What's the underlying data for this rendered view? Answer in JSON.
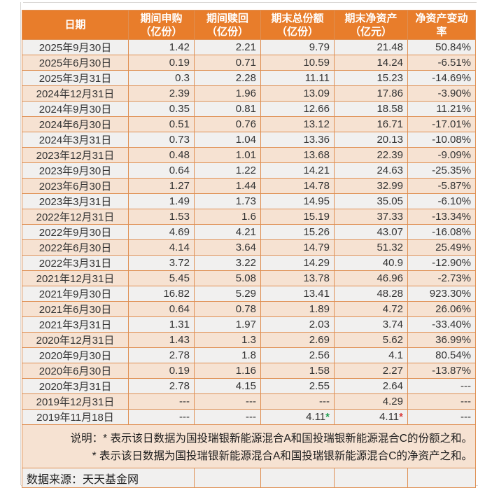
{
  "colors": {
    "header_bg": "#E87D2B",
    "border": "#DF8F52",
    "row_peach": "#F6E2D2",
    "row_light": "#F1F0EF",
    "star_green": "#1E9E50",
    "star_red": "#D93A3A"
  },
  "chart_data": {
    "type": "table",
    "columns": [
      {
        "line1": "日期",
        "line2": ""
      },
      {
        "line1": "期间申购",
        "line2": "（亿份）"
      },
      {
        "line1": "期间赎回",
        "line2": "（亿份）"
      },
      {
        "line1": "期末总份额",
        "line2": "（亿份）"
      },
      {
        "line1": "期末净资产",
        "line2": "（亿元）"
      },
      {
        "line1": "净资产变动",
        "line2": "率"
      }
    ],
    "rows": [
      [
        "2025年9月30日",
        "1.42",
        "2.21",
        "9.79",
        "21.48",
        "50.84%"
      ],
      [
        "2025年6月30日",
        "0.19",
        "0.71",
        "10.59",
        "14.24",
        "-6.51%"
      ],
      [
        "2025年3月31日",
        "0.3",
        "2.28",
        "11.11",
        "15.23",
        "-14.69%"
      ],
      [
        "2024年12月31日",
        "2.39",
        "1.96",
        "13.09",
        "17.86",
        "-3.90%"
      ],
      [
        "2024年9月30日",
        "0.35",
        "0.81",
        "12.66",
        "18.58",
        "11.21%"
      ],
      [
        "2024年6月30日",
        "0.51",
        "0.76",
        "13.12",
        "16.71",
        "-17.01%"
      ],
      [
        "2024年3月31日",
        "0.73",
        "1.04",
        "13.36",
        "20.13",
        "-10.08%"
      ],
      [
        "2023年12月31日",
        "0.48",
        "1.01",
        "13.68",
        "22.39",
        "-9.09%"
      ],
      [
        "2023年9月30日",
        "0.64",
        "1.22",
        "14.21",
        "24.63",
        "-25.35%"
      ],
      [
        "2023年6月30日",
        "1.27",
        "1.44",
        "14.78",
        "32.99",
        "-5.87%"
      ],
      [
        "2023年3月31日",
        "1.49",
        "1.73",
        "14.95",
        "35.05",
        "-6.10%"
      ],
      [
        "2022年12月31日",
        "1.53",
        "1.6",
        "15.19",
        "37.33",
        "-13.34%"
      ],
      [
        "2022年9月30日",
        "4.69",
        "4.21",
        "15.26",
        "43.07",
        "-16.08%"
      ],
      [
        "2022年6月30日",
        "4.14",
        "3.64",
        "14.79",
        "51.32",
        "25.49%"
      ],
      [
        "2022年3月31日",
        "3.72",
        "3.22",
        "14.29",
        "40.9",
        "-12.90%"
      ],
      [
        "2021年12月31日",
        "5.45",
        "5.08",
        "13.78",
        "46.96",
        "-2.73%"
      ],
      [
        "2021年9月30日",
        "16.82",
        "5.29",
        "13.41",
        "48.28",
        "923.30%"
      ],
      [
        "2021年6月30日",
        "0.64",
        "0.78",
        "1.89",
        "4.72",
        "26.06%"
      ],
      [
        "2021年3月31日",
        "1.31",
        "1.97",
        "2.03",
        "3.74",
        "-33.40%"
      ],
      [
        "2020年12月31日",
        "1.43",
        "1.3",
        "2.69",
        "5.62",
        "36.99%"
      ],
      [
        "2020年9月30日",
        "2.78",
        "1.8",
        "2.56",
        "4.1",
        "80.54%"
      ],
      [
        "2020年6月30日",
        "0.19",
        "1.16",
        "1.58",
        "2.27",
        "-13.87%"
      ],
      [
        "2020年3月31日",
        "2.78",
        "4.15",
        "2.55",
        "2.64",
        "---"
      ],
      [
        "2019年12月31日",
        "---",
        "---",
        "---",
        "4.29",
        "---"
      ],
      [
        "2019年11月18日",
        "---",
        "---",
        {
          "v": "4.11",
          "star": "green"
        },
        {
          "v": "4.11",
          "star": "red"
        },
        "---"
      ]
    ],
    "note_line1": "说明：* 表示该日数据为国投瑞银新能源混合A和国投瑞银新能源混合C的份额之和。",
    "note_line2": "* 表示该日数据为国投瑞银新能源混合A和国投瑞银新能源混合C的净资产之和。",
    "source": "数据来源：天天基金网"
  }
}
